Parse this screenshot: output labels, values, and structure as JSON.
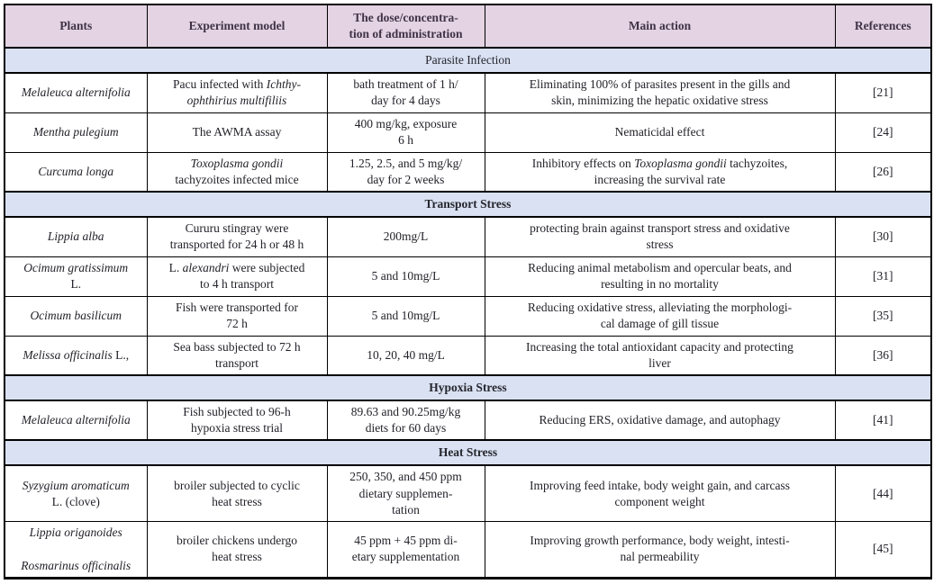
{
  "colors": {
    "header_background": "#e3d3e3",
    "section_background": "#d9e1f2",
    "border": "#000000",
    "header_text": "#403347",
    "body_text": "#22222a"
  },
  "table": {
    "columns": [
      {
        "label": "Plants"
      },
      {
        "label": "Experiment model"
      },
      {
        "label": "The dose/concentra-<br>tion of administration"
      },
      {
        "label": "Main action"
      },
      {
        "label": "References"
      }
    ],
    "sections": [
      {
        "title": "Parasite Infection",
        "bold": false,
        "rows": [
          {
            "plant": "<i>Melaleuca alternifolia</i>",
            "model": "Pacu infected with <i>Ichthy-<br>ophthirius multifiliis</i>",
            "dose": "bath treatment of 1 h/<br>day for 4 days",
            "action": "Eliminating 100% of parasites present in the gills and<br>skin, minimizing the hepatic oxidative stress",
            "ref": "[21]"
          },
          {
            "plant": "<i>Mentha pulegium</i>",
            "model": "The AWMA assay",
            "dose": "400 mg/kg, exposure<br>6 h",
            "action": "Nematicidal effect",
            "ref": "[24]"
          },
          {
            "plant": "<i>Curcuma longa</i>",
            "model": "<i>Toxoplasma gondii</i><br>tachyzoites infected mice",
            "dose": "1.25, 2.5, and 5 mg/kg/<br>day for 2 weeks",
            "action": "Inhibitory effects on <i>Toxoplasma gondii</i> tachyzoites,<br>increasing the survival rate",
            "ref": "[26]"
          }
        ]
      },
      {
        "title": "Transport Stress",
        "bold": true,
        "rows": [
          {
            "plant": "<i>Lippia alba</i>",
            "model": "Cururu stingray were<br>transported for 24 h or 48 h",
            "dose": "200mg/L",
            "action": "protecting brain against transport stress and oxidative<br>stress",
            "ref": "[30]"
          },
          {
            "plant": "<i>Ocimum gratissimum</i><br>L.",
            "model": "L. <i>alexandri</i> were subjected<br>to 4 h transport",
            "dose": "5 and 10mg/L",
            "action": "Reducing animal metabolism and opercular beats, and<br>resulting in no mortality",
            "ref": "[31]"
          },
          {
            "plant": "<i>Ocimum basilicum</i>",
            "model": "Fish were transported for<br>72 h",
            "dose": "5 and 10mg/L",
            "action": "Reducing oxidative stress, alleviating the morphologi-<br>cal damage of gill tissue",
            "ref": "[35]"
          },
          {
            "plant": "<i>Melissa officinalis</i> L.,",
            "model": "Sea bass subjected to 72 h<br>transport",
            "dose": "10, 20, 40 mg/L",
            "action": "Increasing the total antioxidant capacity and protecting<br>liver",
            "ref": "[36]"
          }
        ]
      },
      {
        "title": "Hypoxia Stress",
        "bold": true,
        "rows": [
          {
            "plant": "<i>Melaleuca alternifolia</i>",
            "model": "Fish subjected to 96-h<br>hypoxia stress trial",
            "dose": "89.63 and 90.25mg/kg<br>diets for 60 days",
            "action": "Reducing ERS, oxidative damage, and autophagy",
            "ref": "[41]"
          }
        ]
      },
      {
        "title": "Heat Stress",
        "bold": true,
        "rows": [
          {
            "plant": "<i>Syzygium aromaticum</i><br>L. (clove)",
            "model": "broiler subjected to cyclic<br>heat stress",
            "dose": "250, 350, and 450 ppm<br>dietary supplemen-<br>tation",
            "action": "Improving feed intake, body weight gain, and carcass<br>component weight",
            "ref": "[44]"
          },
          {
            "plant": "<i>Lippia origanoides</i><br><br><i>Rosmarinus officinalis</i>",
            "model": "broiler chickens undergo<br>heat stress",
            "dose": "45 ppm + 45 ppm di-<br>etary supplementation",
            "action": "Improving growth performance, body weight, intesti-<br>nal permeability",
            "ref": "[45]"
          }
        ]
      }
    ]
  }
}
